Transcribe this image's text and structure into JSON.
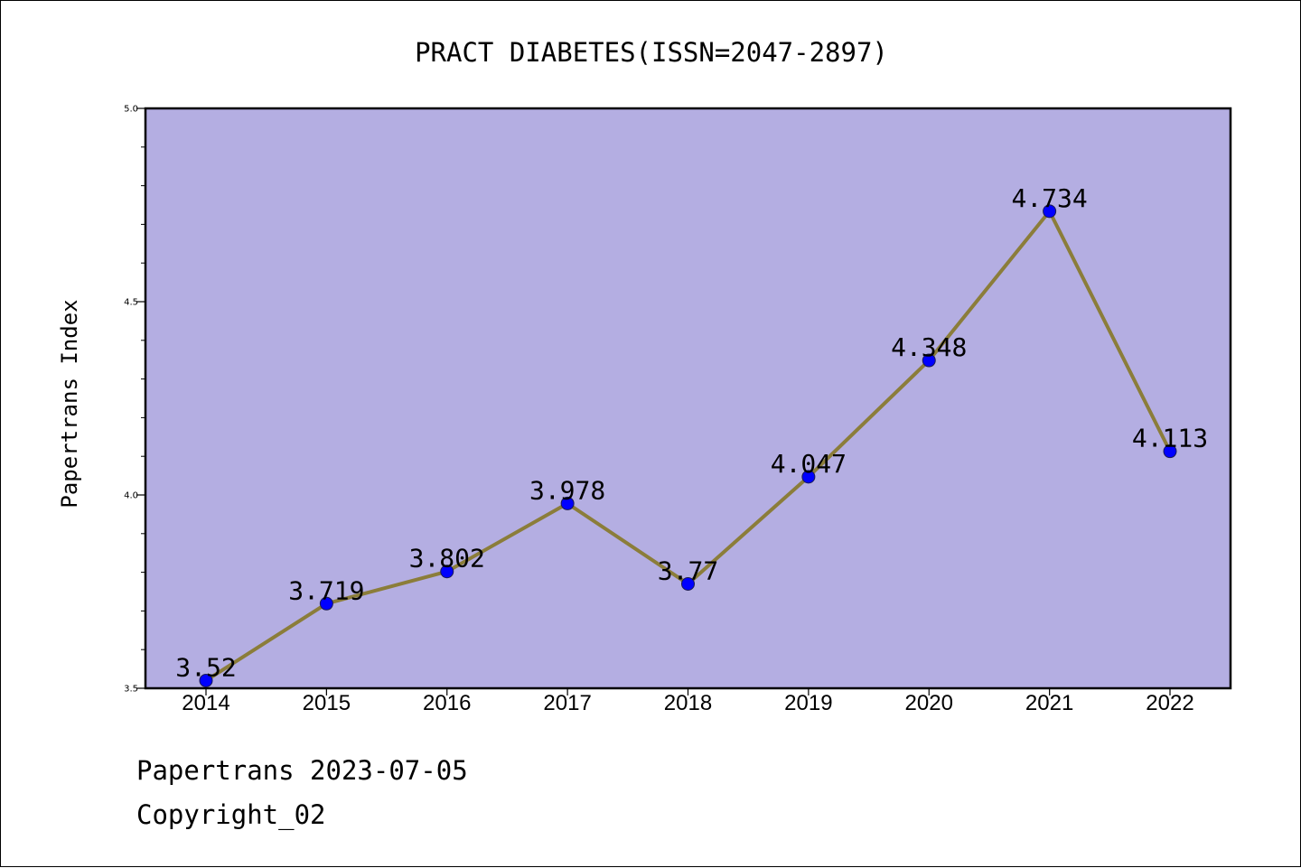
{
  "chart_data": {
    "type": "line",
    "title": "PRACT DIABETES(ISSN=2047-2897)",
    "xlabel": "",
    "ylabel": "Papertrans Index",
    "categories": [
      "2014",
      "2015",
      "2016",
      "2017",
      "2018",
      "2019",
      "2020",
      "2021",
      "2022"
    ],
    "series": [
      {
        "values": [
          3.52,
          3.719,
          3.802,
          3.978,
          3.77,
          4.047,
          4.348,
          4.734,
          4.113
        ],
        "labels": [
          "3.52",
          "3.719",
          "3.802",
          "3.978",
          "3.77",
          "4.047",
          "4.348",
          "4.734",
          "4.113"
        ],
        "line_color": "#8b7d3a",
        "marker_color": "#0000ff"
      }
    ],
    "ylim": [
      3.5,
      5.0
    ],
    "yticks": [
      "3.5",
      "4.0",
      "4.5",
      "5.0"
    ],
    "y_minor_step": 0.1,
    "plot_background": "#b4aee2",
    "grid": false,
    "legend": "none"
  },
  "footer": {
    "date_line": "Papertrans 2023-07-05",
    "copyright": "Copyright_02"
  }
}
